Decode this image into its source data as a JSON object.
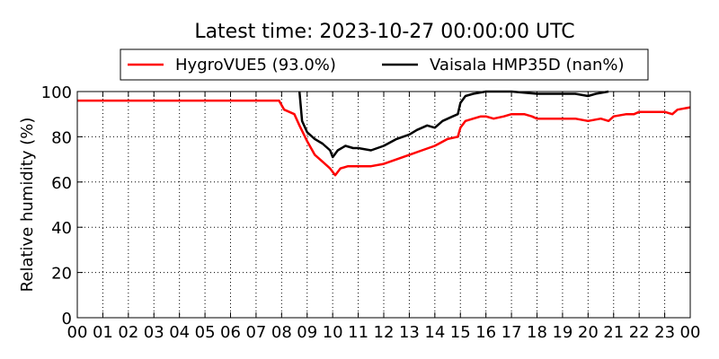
{
  "chart_data": {
    "type": "line",
    "title": "Latest time: 2023-10-27 00:00:00 UTC",
    "xlabel": "",
    "ylabel": "Relative humidity (%)",
    "xlim": [
      0,
      24
    ],
    "ylim": [
      0,
      100
    ],
    "x_ticks": [
      0,
      1,
      2,
      3,
      4,
      5,
      6,
      7,
      8,
      9,
      10,
      11,
      12,
      13,
      14,
      15,
      16,
      17,
      18,
      19,
      20,
      21,
      22,
      23,
      24
    ],
    "x_tick_labels": [
      "00",
      "01",
      "02",
      "03",
      "04",
      "05",
      "06",
      "07",
      "08",
      "09",
      "10",
      "11",
      "12",
      "13",
      "14",
      "15",
      "16",
      "17",
      "18",
      "19",
      "20",
      "21",
      "22",
      "23",
      "00"
    ],
    "y_ticks": [
      0,
      20,
      40,
      60,
      80,
      100
    ],
    "y_tick_labels": [
      "0",
      "20",
      "40",
      "60",
      "80",
      "100"
    ],
    "grid": true,
    "legend_position": "top",
    "series": [
      {
        "name": "HygroVUE5 (93.0%)",
        "color": "#ff0000",
        "x": [
          0,
          7.9,
          8.1,
          8.5,
          8.7,
          9.0,
          9.3,
          9.6,
          9.9,
          10.1,
          10.3,
          10.6,
          11.0,
          11.5,
          12.0,
          12.5,
          13.0,
          13.5,
          14.0,
          14.5,
          14.9,
          15.0,
          15.2,
          15.5,
          15.8,
          16.0,
          16.3,
          16.7,
          17.0,
          17.5,
          17.8,
          18.0,
          18.5,
          19.0,
          19.5,
          20.0,
          20.5,
          20.8,
          21.0,
          21.5,
          21.8,
          22.0,
          22.5,
          23.0,
          23.3,
          23.5,
          24.0
        ],
        "y": [
          96,
          96,
          92,
          90,
          85,
          78,
          72,
          69,
          66,
          63,
          66,
          67,
          67,
          67,
          68,
          70,
          72,
          74,
          76,
          79,
          80,
          84,
          87,
          88,
          89,
          89,
          88,
          89,
          90,
          90,
          89,
          88,
          88,
          88,
          88,
          87,
          88,
          87,
          89,
          90,
          90,
          91,
          91,
          91,
          90,
          92,
          93
        ]
      },
      {
        "name": "Vaisala HMP35D (nan%)",
        "color": "#000000",
        "x": [
          8.7,
          8.8,
          9.0,
          9.3,
          9.6,
          9.9,
          10.0,
          10.2,
          10.5,
          10.8,
          11.0,
          11.5,
          12.0,
          12.5,
          13.0,
          13.3,
          13.7,
          14.0,
          14.3,
          14.7,
          14.9,
          15.0,
          15.2,
          15.5,
          16.0,
          17.0,
          18.0,
          19.0,
          19.5,
          20.0,
          20.3,
          20.8
        ],
        "y": [
          100,
          87,
          82,
          79,
          77,
          74,
          71,
          74,
          76,
          75,
          75,
          74,
          76,
          79,
          81,
          83,
          85,
          84,
          87,
          89,
          90,
          95,
          98,
          99,
          100,
          100,
          99,
          99,
          99,
          98,
          99,
          100
        ]
      }
    ]
  }
}
